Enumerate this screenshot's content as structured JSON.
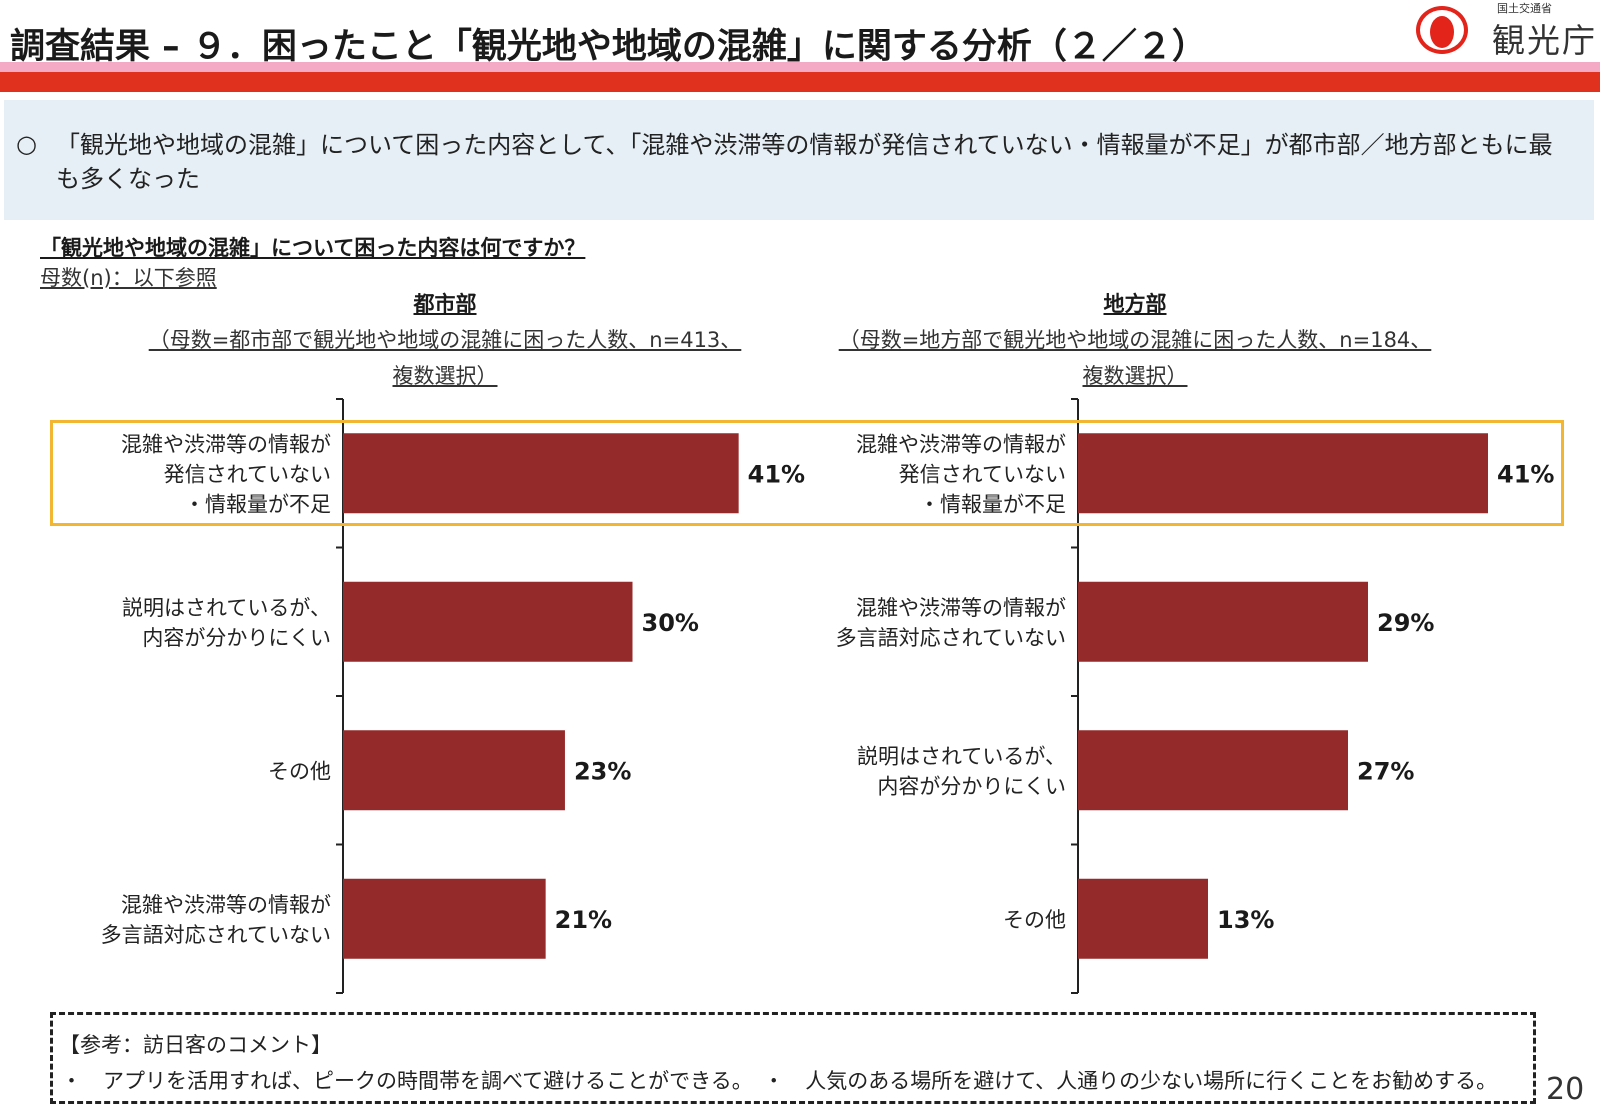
{
  "header": {
    "title": "調査結果 – ９．困ったこと「観光地や地域の混雑」に関する分析（２／２）",
    "logo_ministry": "国土交通省",
    "logo_agency": "観光庁",
    "colors": {
      "title_band_pink": "#f4a9c4",
      "title_band_red": "#e0301e",
      "logo_red": "#e3241b"
    }
  },
  "summary": {
    "bullet": "○",
    "text": "「観光地や地域の混雑」について困った内容として、「混雑や渋滞等の情報が発信されていない・情報量が不足」が都市部／地方部ともに最も多くなった"
  },
  "question": {
    "title": "「観光地や地域の混雑」について困った内容は何ですか？",
    "base": "母数(n)：以下参照"
  },
  "chart_data": [
    {
      "type": "bar",
      "orientation": "horizontal",
      "title": "都市部",
      "subtitle_line1": "（母数=都市部で観光地や地域の混雑に困った人数、n=413、",
      "subtitle_line2": "複数選択）",
      "categories": [
        "混雑や渋滞等の情報が\n発信されていない\n・情報量が不足",
        "説明はされているが、\n内容が分かりにくい",
        "その他",
        "混雑や渋滞等の情報が\n多言語対応されていない"
      ],
      "values": [
        41,
        30,
        23,
        21
      ],
      "data_labels": [
        "41%",
        "30%",
        "23%",
        "21%"
      ],
      "bar_color": "#952a2a",
      "xlim": [
        0,
        100
      ],
      "grid": false
    },
    {
      "type": "bar",
      "orientation": "horizontal",
      "title": "地方部",
      "subtitle_line1": "（母数=地方部で観光地や地域の混雑に困った人数、n=184、",
      "subtitle_line2": "複数選択）",
      "categories": [
        "混雑や渋滞等の情報が\n発信されていない\n・情報量が不足",
        "混雑や渋滞等の情報が\n多言語対応されていない",
        "説明はされているが、\n内容が分かりにくい",
        "その他"
      ],
      "values": [
        41,
        29,
        27,
        13
      ],
      "data_labels": [
        "41%",
        "29%",
        "27%",
        "13%"
      ],
      "bar_color": "#952a2a",
      "xlim": [
        0,
        100
      ],
      "grid": false
    }
  ],
  "highlight_color": "#f2b632",
  "comment": {
    "title": "【参考：訪日客のコメント】",
    "text": "・　アプリを活用すれば、ピークの時間帯を調べて避けることができる。　・　人気のある場所を避けて、人通りの少ない場所に行くことをお勧めする。"
  },
  "page_number": "20"
}
